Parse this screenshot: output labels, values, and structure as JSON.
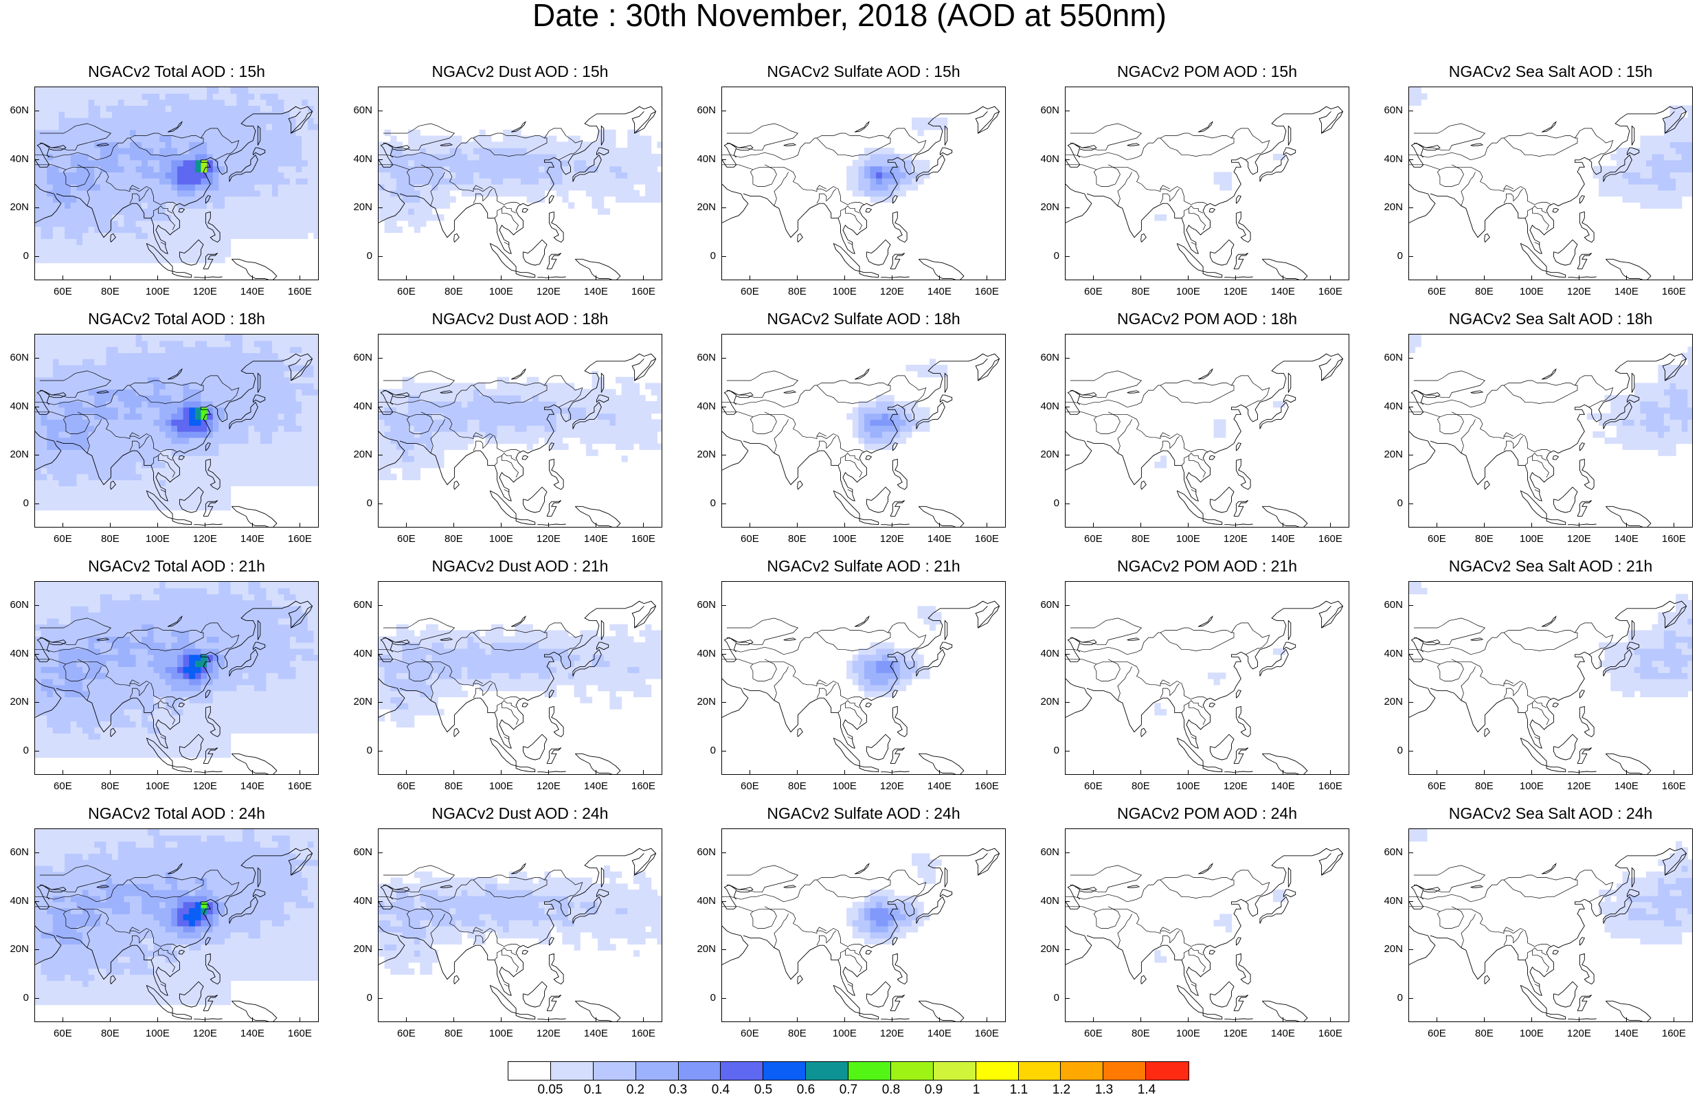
{
  "figure": {
    "title": "Date : 30th November, 2018 (AOD at 550nm)"
  },
  "panel_titles": [
    [
      "NGACv2 Total AOD : 15h",
      "NGACv2 Dust AOD : 15h",
      "NGACv2 Sulfate AOD : 15h",
      "NGACv2 POM AOD : 15h",
      "NGACv2 Sea Salt AOD : 15h"
    ],
    [
      "NGACv2 Total AOD : 18h",
      "NGACv2 Dust AOD : 18h",
      "NGACv2 Sulfate AOD : 18h",
      "NGACv2 POM AOD : 18h",
      "NGACv2 Sea Salt AOD : 18h"
    ],
    [
      "NGACv2 Total AOD : 21h",
      "NGACv2 Dust AOD : 21h",
      "NGACv2 Sulfate AOD : 21h",
      "NGACv2 POM AOD : 21h",
      "NGACv2 Sea Salt AOD : 21h"
    ],
    [
      "NGACv2 Total AOD : 24h",
      "NGACv2 Dust AOD : 24h",
      "NGACv2 Sulfate AOD : 24h",
      "NGACv2 POM AOD : 24h",
      "NGACv2 Sea Salt  AOD : 24h"
    ]
  ],
  "map": {
    "lon_range": [
      48,
      168
    ],
    "lat_range": [
      -10,
      70
    ],
    "lat_ticks": [
      {
        "value": 60,
        "label": "60N"
      },
      {
        "value": 40,
        "label": "40N"
      },
      {
        "value": 20,
        "label": "20N"
      },
      {
        "value": 0,
        "label": "0"
      }
    ],
    "lon_ticks": [
      {
        "value": 60,
        "label": "60E"
      },
      {
        "value": 80,
        "label": "80E"
      },
      {
        "value": 100,
        "label": "100E"
      },
      {
        "value": 120,
        "label": "120E"
      },
      {
        "value": 140,
        "label": "140E"
      },
      {
        "value": 160,
        "label": "160E"
      }
    ]
  },
  "colorbar": {
    "colors": [
      "#ffffff",
      "#d6defe",
      "#b9c8fe",
      "#9db2fd",
      "#8199fb",
      "#5f68f1",
      "#0a5ff7",
      "#0d9393",
      "#53f514",
      "#9ef314",
      "#cff43a",
      "#ffff00",
      "#ffd600",
      "#ffa800",
      "#ff7a00",
      "#ff2a12"
    ],
    "labels": [
      "0.05",
      "0.1",
      "0.2",
      "0.3",
      "0.4",
      "0.5",
      "0.6",
      "0.7",
      "0.8",
      "0.9",
      "1",
      "1.1",
      "1.2",
      "1.3",
      "1.4"
    ]
  },
  "chart_data": {
    "type": "heatmap",
    "title": "Date : 30th November, 2018 (AOD at 550nm)",
    "variable": "AOD at 550nm",
    "date": "30th November, 2018",
    "model": "NGACv2",
    "species": [
      "Total",
      "Dust",
      "Sulfate",
      "POM",
      "Sea Salt"
    ],
    "forecast_hours": [
      "15h",
      "18h",
      "21h",
      "24h"
    ],
    "domain": {
      "lon": [
        48,
        168
      ],
      "lat": [
        -10,
        70
      ]
    },
    "levels": [
      0.05,
      0.1,
      0.2,
      0.3,
      0.4,
      0.5,
      0.6,
      0.7,
      0.8,
      0.9,
      1,
      1.1,
      1.2,
      1.3,
      1.4
    ],
    "approx_features": [
      {
        "species": "Total",
        "region": "East China plain",
        "lon": [
          103,
          122
        ],
        "lat": [
          28,
          40
        ],
        "aod": 0.4,
        "peak": 0.8
      },
      {
        "species": "Total",
        "region": "Central Asia / Middle East",
        "lon": [
          48,
          100
        ],
        "lat": [
          15,
          48
        ],
        "aod": 0.1
      },
      {
        "species": "Dust",
        "region": "Central Asia band",
        "lon": [
          48,
          115
        ],
        "lat": [
          28,
          45
        ],
        "aod": 0.1
      },
      {
        "species": "Sulfate",
        "region": "East China",
        "lon": [
          105,
          125
        ],
        "lat": [
          27,
          40
        ],
        "aod": 0.3
      },
      {
        "species": "POM",
        "region": "sparse patches",
        "aod": 0.05
      },
      {
        "species": "Sea Salt",
        "region": "NW Pacific",
        "lon": [
          130,
          168
        ],
        "lat": [
          20,
          55
        ],
        "aod": 0.1
      }
    ]
  }
}
